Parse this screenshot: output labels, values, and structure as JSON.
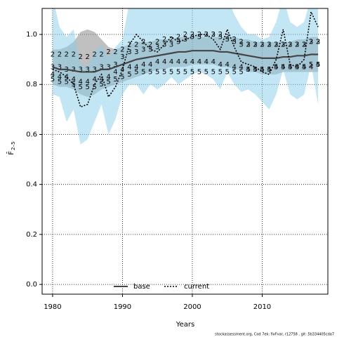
{
  "chart_data": {
    "type": "line",
    "xlabel": "Years",
    "ylabel": "F̄",
    "ylabel_subscript": "2–5",
    "footer": "stockassessment.org, Cod 7ek: fixFvar, r12758 , git: 5b334405cda7",
    "x": [
      1980,
      1981,
      1982,
      1983,
      1984,
      1985,
      1986,
      1987,
      1988,
      1989,
      1990,
      1991,
      1992,
      1993,
      1994,
      1995,
      1996,
      1997,
      1998,
      1999,
      2000,
      2001,
      2002,
      2003,
      2004,
      2005,
      2006,
      2007,
      2008,
      2009,
      2010,
      2011,
      2012,
      2013,
      2014,
      2015,
      2016,
      2017,
      2018
    ],
    "xlim": [
      1978.5,
      2019.4
    ],
    "xticks": [
      1980,
      1990,
      2000,
      2010
    ],
    "ylim": [
      -0.039,
      1.104
    ],
    "yticks": [
      {
        "value": 0,
        "label": "0.0"
      },
      0.2,
      0.4,
      0.6,
      0.8,
      {
        "value": 1,
        "label": "1.0"
      }
    ],
    "grid": true,
    "legend": "bottom",
    "series": [
      {
        "name": "base",
        "color": "#444444",
        "style": "solid",
        "band_color": "rgba(140,140,140,0.55)",
        "values": [
          0.87,
          0.86,
          0.86,
          0.855,
          0.85,
          0.85,
          0.85,
          0.86,
          0.86,
          0.87,
          0.88,
          0.89,
          0.9,
          0.905,
          0.91,
          0.915,
          0.92,
          0.925,
          0.93,
          0.93,
          0.935,
          0.935,
          0.935,
          0.935,
          0.93,
          0.93,
          0.925,
          0.92,
          0.915,
          0.91,
          0.905,
          0.905,
          0.905,
          0.91,
          0.91,
          0.915,
          0.915,
          0.92,
          0.92
        ],
        "lower": [
          0.8,
          0.79,
          0.79,
          0.78,
          0.76,
          0.75,
          0.76,
          0.78,
          0.79,
          0.8,
          0.81,
          0.82,
          0.83,
          0.84,
          0.85,
          0.86,
          0.86,
          0.87,
          0.87,
          0.87,
          0.88,
          0.88,
          0.88,
          0.88,
          0.87,
          0.87,
          0.86,
          0.86,
          0.85,
          0.85,
          0.84,
          0.84,
          0.84,
          0.85,
          0.85,
          0.85,
          0.85,
          0.85,
          0.85
        ],
        "upper": [
          0.94,
          0.94,
          0.95,
          0.97,
          1.01,
          1.02,
          1.01,
          0.98,
          0.95,
          0.94,
          0.95,
          0.96,
          0.97,
          0.97,
          0.97,
          0.98,
          0.98,
          0.98,
          0.99,
          0.99,
          0.99,
          0.99,
          0.99,
          0.99,
          0.99,
          0.99,
          0.99,
          0.98,
          0.98,
          0.97,
          0.97,
          0.97,
          0.97,
          0.97,
          0.97,
          0.98,
          0.98,
          0.99,
          0.99
        ]
      },
      {
        "name": "current",
        "color": "#000000",
        "style": "dotted",
        "band_color": "rgba(135,206,235,0.5)",
        "values": [
          0.86,
          0.85,
          0.83,
          0.8,
          0.71,
          0.72,
          0.8,
          0.84,
          0.75,
          0.79,
          0.86,
          0.96,
          1.0,
          0.97,
          0.94,
          0.93,
          0.96,
          0.99,
          0.97,
          0.98,
          0.99,
          1.0,
          1.0,
          0.98,
          0.94,
          1.02,
          0.95,
          0.89,
          0.88,
          0.87,
          0.85,
          0.84,
          0.9,
          1.02,
          0.88,
          0.87,
          0.9,
          1.09,
          1.03
        ],
        "lower": [
          0.76,
          0.75,
          0.65,
          0.7,
          0.56,
          0.58,
          0.65,
          0.72,
          0.6,
          0.66,
          0.76,
          0.8,
          0.8,
          0.76,
          0.8,
          0.78,
          0.8,
          0.83,
          0.8,
          0.82,
          0.84,
          0.85,
          0.84,
          0.82,
          0.78,
          0.85,
          0.8,
          0.77,
          0.78,
          0.76,
          0.73,
          0.7,
          0.76,
          0.86,
          0.76,
          0.74,
          0.76,
          0.88,
          0.72
        ],
        "upper": [
          1.15,
          1.03,
          0.99,
          1.02,
          0.88,
          0.87,
          0.93,
          0.96,
          0.91,
          0.95,
          0.98,
          1.13,
          1.15,
          1.15,
          1.13,
          1.12,
          1.14,
          1.15,
          1.15,
          1.15,
          1.15,
          1.15,
          1.15,
          1.15,
          1.12,
          1.15,
          1.08,
          1.03,
          1.0,
          1.0,
          0.98,
          0.99,
          1.05,
          1.15,
          1.05,
          1.03,
          1.05,
          1.15,
          1.15
        ]
      }
    ],
    "markers": [
      {
        "name": "2",
        "color": "#0000ee",
        "values": [
          0.92,
          0.92,
          0.92,
          0.92,
          0.91,
          0.91,
          0.92,
          0.92,
          0.93,
          0.93,
          0.94,
          0.96,
          0.96,
          0.97,
          0.96,
          0.97,
          0.98,
          0.98,
          0.99,
          1.0,
          1.0,
          1.0,
          1.0,
          1.0,
          1.0,
          0.99,
          0.98,
          0.97,
          0.96,
          0.96,
          0.96,
          0.96,
          0.96,
          0.96,
          0.96,
          0.96,
          0.96,
          0.97,
          0.97
        ]
      },
      {
        "name": "3",
        "color": "#0000ee",
        "values": [
          0.87,
          0.87,
          0.86,
          0.86,
          0.86,
          0.86,
          0.86,
          0.87,
          0.87,
          0.88,
          0.91,
          0.93,
          0.93,
          0.94,
          0.94,
          0.95,
          0.96,
          0.96,
          0.97,
          0.98,
          0.99,
          0.99,
          1.0,
          1.0,
          0.99,
          0.98,
          0.97,
          0.96,
          0.96,
          0.96,
          0.96,
          0.96,
          0.96,
          0.96,
          0.96,
          0.96,
          0.96,
          0.97,
          0.97
        ]
      },
      {
        "name": "4",
        "color": "#0000ee",
        "values": [
          0.84,
          0.83,
          0.83,
          0.82,
          0.81,
          0.81,
          0.82,
          0.82,
          0.83,
          0.85,
          0.86,
          0.87,
          0.87,
          0.88,
          0.88,
          0.89,
          0.89,
          0.89,
          0.89,
          0.89,
          0.89,
          0.89,
          0.89,
          0.89,
          0.88,
          0.88,
          0.87,
          0.87,
          0.86,
          0.86,
          0.86,
          0.86,
          0.87,
          0.87,
          0.87,
          0.87,
          0.87,
          0.87,
          0.88
        ]
      },
      {
        "name": "5",
        "color": "#0000ee",
        "values": [
          0.82,
          0.81,
          0.81,
          0.8,
          0.79,
          0.79,
          0.79,
          0.8,
          0.81,
          0.82,
          0.83,
          0.84,
          0.85,
          0.85,
          0.85,
          0.85,
          0.85,
          0.85,
          0.85,
          0.85,
          0.85,
          0.85,
          0.85,
          0.85,
          0.85,
          0.85,
          0.85,
          0.85,
          0.86,
          0.86,
          0.86,
          0.86,
          0.87,
          0.87,
          0.87,
          0.87,
          0.87,
          0.88,
          0.88
        ]
      }
    ]
  }
}
